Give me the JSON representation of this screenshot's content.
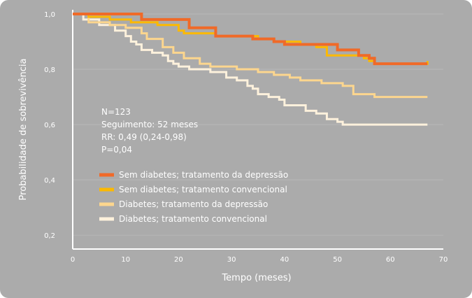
{
  "chart_data": {
    "type": "line",
    "step": true,
    "xlabel": "Tempo (meses)",
    "ylabel": "Probabilidade de sobrevivência",
    "xlim": [
      0,
      70
    ],
    "ylim": [
      0.15,
      1.0
    ],
    "xticks": [
      "0",
      "10",
      "20",
      "30",
      "40",
      "50",
      "60",
      "70"
    ],
    "yticks": [
      "0,2",
      "0,4",
      "0,6",
      "0,8",
      "1,0"
    ],
    "grid": "horizontal",
    "legend_position": "bottom-left",
    "annotation": [
      "N=123",
      "Seguimento: 52 meses",
      "RR: 0,49 (0,24-0,98)",
      "P=0,04"
    ],
    "series": [
      {
        "name": "Diabetes; tratamento convencional",
        "color": "#fdf1dc",
        "x": [
          0,
          2,
          5,
          8,
          10,
          11,
          12,
          13,
          15,
          17,
          18,
          19,
          20,
          22,
          24,
          26,
          28,
          29,
          31,
          33,
          34,
          35,
          37,
          39,
          40,
          42,
          44,
          46,
          48,
          50,
          51,
          67
        ],
        "y": [
          1.0,
          0.98,
          0.96,
          0.94,
          0.92,
          0.9,
          0.89,
          0.87,
          0.86,
          0.85,
          0.83,
          0.82,
          0.81,
          0.8,
          0.8,
          0.79,
          0.79,
          0.77,
          0.76,
          0.74,
          0.73,
          0.71,
          0.7,
          0.69,
          0.67,
          0.67,
          0.65,
          0.64,
          0.62,
          0.61,
          0.6,
          0.6
        ]
      },
      {
        "name": "Diabetes; tratamento da depressão",
        "color": "#fcd68e",
        "x": [
          0,
          3,
          7,
          10,
          13,
          14,
          17,
          19,
          21,
          24,
          26,
          31,
          33,
          35,
          38,
          41,
          43,
          47,
          51,
          53,
          55,
          57,
          67
        ],
        "y": [
          1.0,
          0.97,
          0.96,
          0.95,
          0.93,
          0.91,
          0.88,
          0.86,
          0.84,
          0.82,
          0.81,
          0.8,
          0.8,
          0.79,
          0.78,
          0.77,
          0.76,
          0.75,
          0.74,
          0.71,
          0.71,
          0.7,
          0.7
        ]
      },
      {
        "name": "Sem diabetes; tratamento convencional",
        "color": "#fcb900",
        "x": [
          0,
          3,
          7,
          11,
          16,
          20,
          21,
          27,
          31,
          35,
          38,
          39,
          43,
          46,
          48,
          53,
          55,
          56,
          57,
          62,
          67
        ],
        "y": [
          1.0,
          0.99,
          0.98,
          0.97,
          0.96,
          0.94,
          0.93,
          0.92,
          0.92,
          0.91,
          0.9,
          0.9,
          0.89,
          0.88,
          0.85,
          0.85,
          0.84,
          0.83,
          0.82,
          0.82,
          0.83
        ]
      },
      {
        "name": "Sem diabetes; tratamento da depressão",
        "color": "#f06a28",
        "x": [
          0,
          5,
          9,
          13,
          19,
          22,
          27,
          30,
          34,
          36,
          38,
          40,
          45,
          48,
          50,
          52,
          54,
          56,
          57,
          67
        ],
        "y": [
          1.0,
          1.0,
          1.0,
          0.98,
          0.98,
          0.95,
          0.92,
          0.92,
          0.91,
          0.91,
          0.9,
          0.89,
          0.89,
          0.89,
          0.87,
          0.87,
          0.85,
          0.84,
          0.82,
          0.82
        ]
      }
    ],
    "legend_order": [
      "Sem diabetes; tratamento da depressão",
      "Sem diabetes; tratamento convencional",
      "Diabetes; tratamento da depressão",
      "Diabetes; tratamento convencional"
    ]
  }
}
